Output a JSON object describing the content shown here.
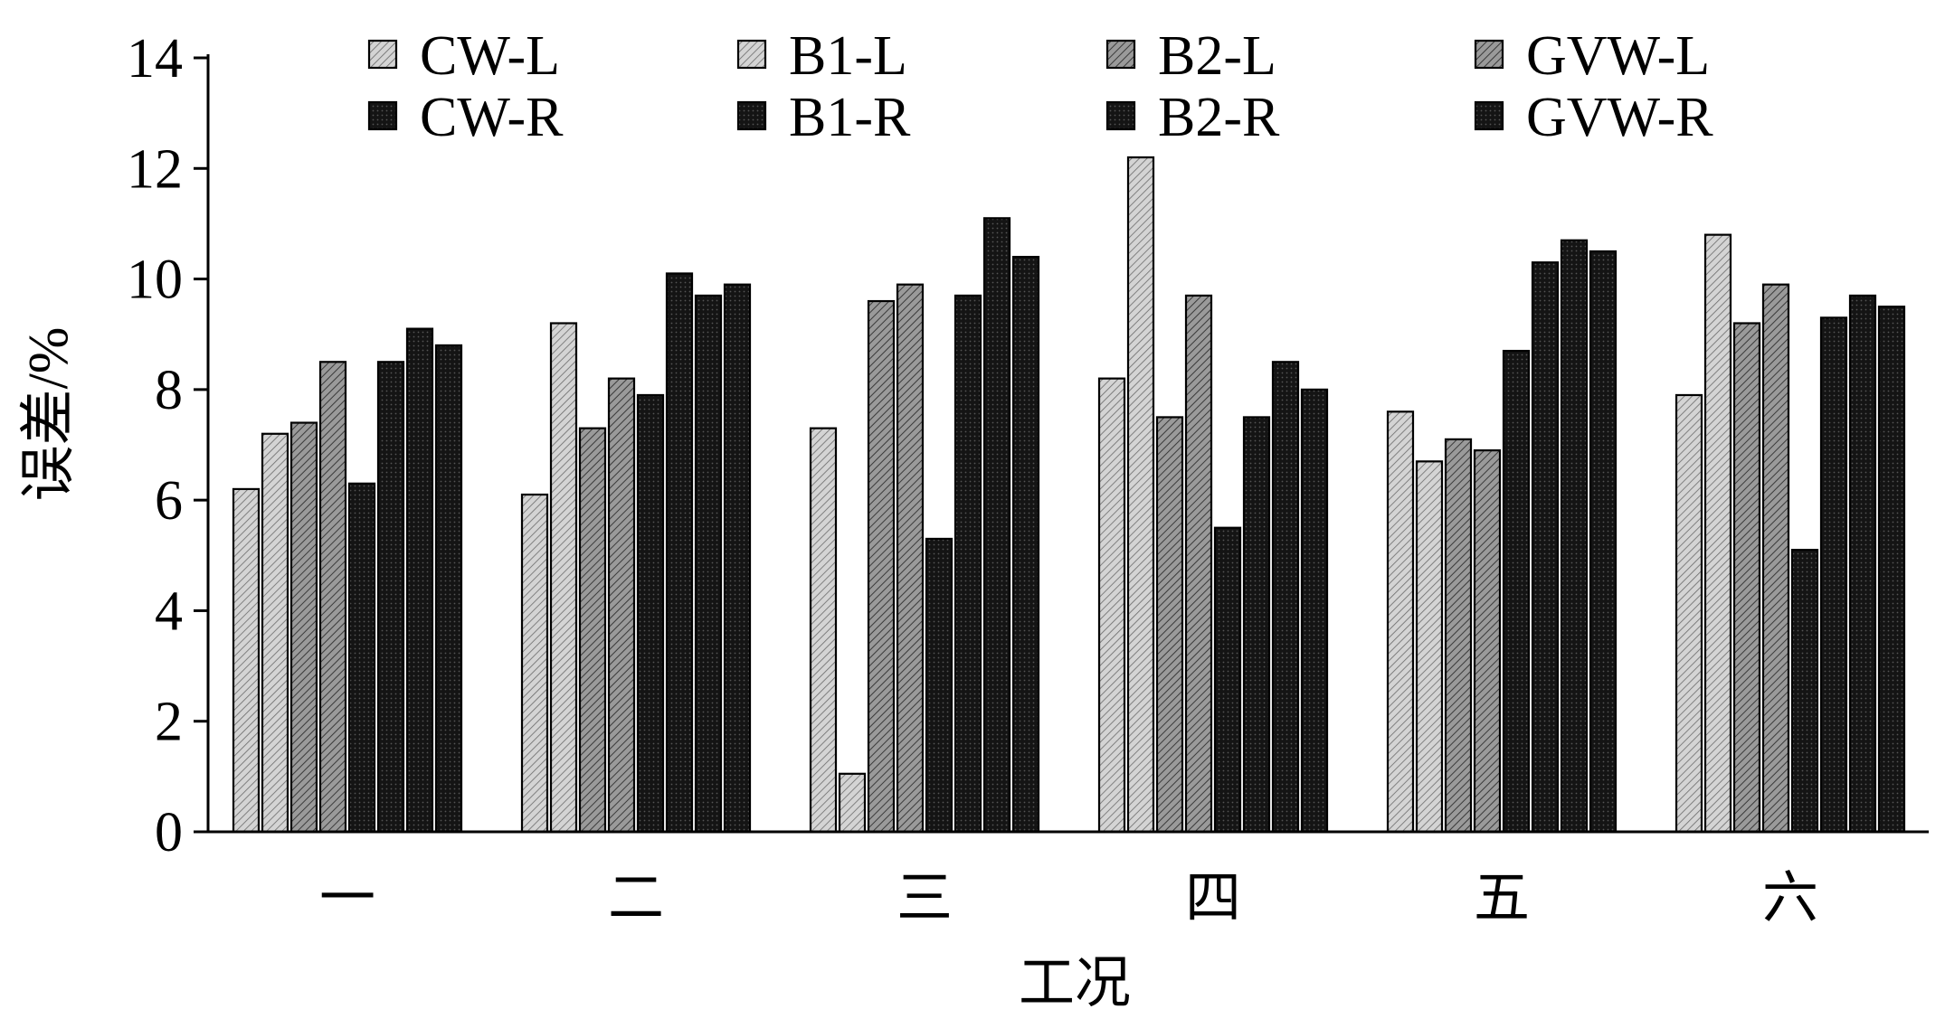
{
  "chart_data": {
    "type": "bar",
    "title": "",
    "xlabel": "工况",
    "ylabel": "误差/%",
    "ylim": [
      0,
      14
    ],
    "yticks": [
      0,
      2,
      4,
      6,
      8,
      10,
      12,
      14
    ],
    "grid": false,
    "legend_position": "top",
    "categories": [
      "一",
      "二",
      "三",
      "四",
      "五",
      "六"
    ],
    "series": [
      {
        "name": "CW-L",
        "pattern": "light-hatch",
        "values": [
          6.2,
          6.1,
          7.3,
          8.2,
          7.6,
          7.9
        ]
      },
      {
        "name": "B1-L",
        "pattern": "light-hatch",
        "values": [
          7.2,
          9.2,
          1.05,
          12.2,
          6.7,
          10.8
        ]
      },
      {
        "name": "B2-L",
        "pattern": "medium-hatch",
        "values": [
          7.4,
          7.3,
          9.6,
          7.5,
          7.1,
          9.2
        ]
      },
      {
        "name": "GVW-L",
        "pattern": "medium-hatch",
        "values": [
          8.5,
          8.2,
          9.9,
          9.7,
          6.9,
          9.9
        ]
      },
      {
        "name": "CW-R",
        "pattern": "dark-dots",
        "values": [
          6.3,
          7.9,
          5.3,
          5.5,
          8.7,
          5.1
        ]
      },
      {
        "name": "B1-R",
        "pattern": "dark-dots",
        "values": [
          8.5,
          10.1,
          9.7,
          7.5,
          10.3,
          9.3
        ]
      },
      {
        "name": "B2-R",
        "pattern": "dark-dots",
        "values": [
          9.1,
          9.7,
          11.1,
          8.5,
          10.7,
          9.7
        ]
      },
      {
        "name": "GVW-R",
        "pattern": "dark-dots",
        "values": [
          8.8,
          9.9,
          10.4,
          8.0,
          10.5,
          9.5
        ]
      }
    ]
  }
}
